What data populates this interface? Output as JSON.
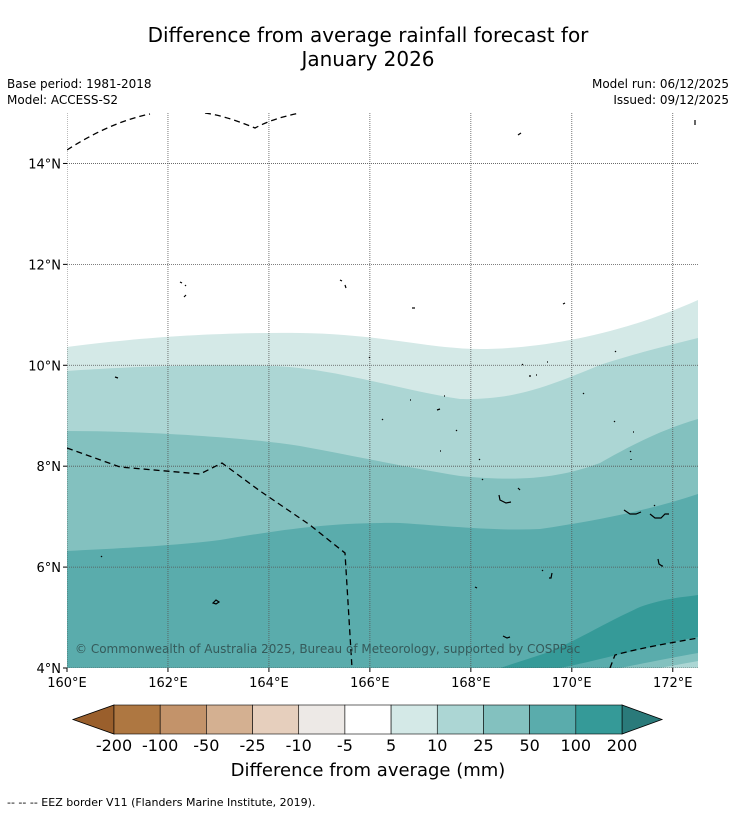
{
  "title": {
    "line1": "Difference from average rainfall forecast for",
    "line2": "January 2026"
  },
  "info": {
    "base_period": "Base period: 1981-2018",
    "model": "Model: ACCESS-S2",
    "model_run": "Model run: 06/12/2025",
    "issued": "Issued: 09/12/2025"
  },
  "map": {
    "lon_range": [
      160,
      172.5
    ],
    "lat_range": [
      4,
      15
    ],
    "x_ticks": [
      {
        "value": 160,
        "label": "160°E"
      },
      {
        "value": 162,
        "label": "162°E"
      },
      {
        "value": 164,
        "label": "164°E"
      },
      {
        "value": 166,
        "label": "166°E"
      },
      {
        "value": 168,
        "label": "168°E"
      },
      {
        "value": 170,
        "label": "170°E"
      },
      {
        "value": 172,
        "label": "172°E"
      }
    ],
    "y_ticks": [
      {
        "value": 4,
        "label": "4°N"
      },
      {
        "value": 6,
        "label": "6°N"
      },
      {
        "value": 8,
        "label": "8°N"
      },
      {
        "value": 10,
        "label": "10°N"
      },
      {
        "value": 12,
        "label": "12°N"
      },
      {
        "value": 14,
        "label": "14°N"
      }
    ],
    "copyright": "© Commonwealth of Australia 2025, Bureau of Meteorology, supported by COSPPac",
    "bands": [
      {
        "label": "5 to 10 mm",
        "color": "#d4e9e7"
      },
      {
        "label": "10 to 25 mm",
        "color": "#acd6d4"
      },
      {
        "label": "25 to 50 mm",
        "color": "#83c1bf"
      },
      {
        "label": "50 to 100 mm",
        "color": "#5aacac"
      },
      {
        "label": "100 to 200 mm",
        "color": "#359a98"
      }
    ]
  },
  "colorbar": {
    "title": "Difference from average (mm)",
    "labels": [
      "-200",
      "-100",
      "-50",
      "-25",
      "-10",
      "-5",
      "5",
      "10",
      "25",
      "50",
      "100",
      "200"
    ],
    "colors": [
      "#ae7741",
      "#c3936a",
      "#d4b091",
      "#e6cfbd",
      "#ede9e6",
      "#ffffff",
      "#d4e9e7",
      "#acd6d4",
      "#83c1bf",
      "#5aacac",
      "#359a98"
    ],
    "low_extend_color": "#9a5f2c",
    "high_extend_color": "#2a7a7a"
  },
  "footer": "--  --  -- EEZ border V11 (Flanders Marine Institute, 2019)."
}
